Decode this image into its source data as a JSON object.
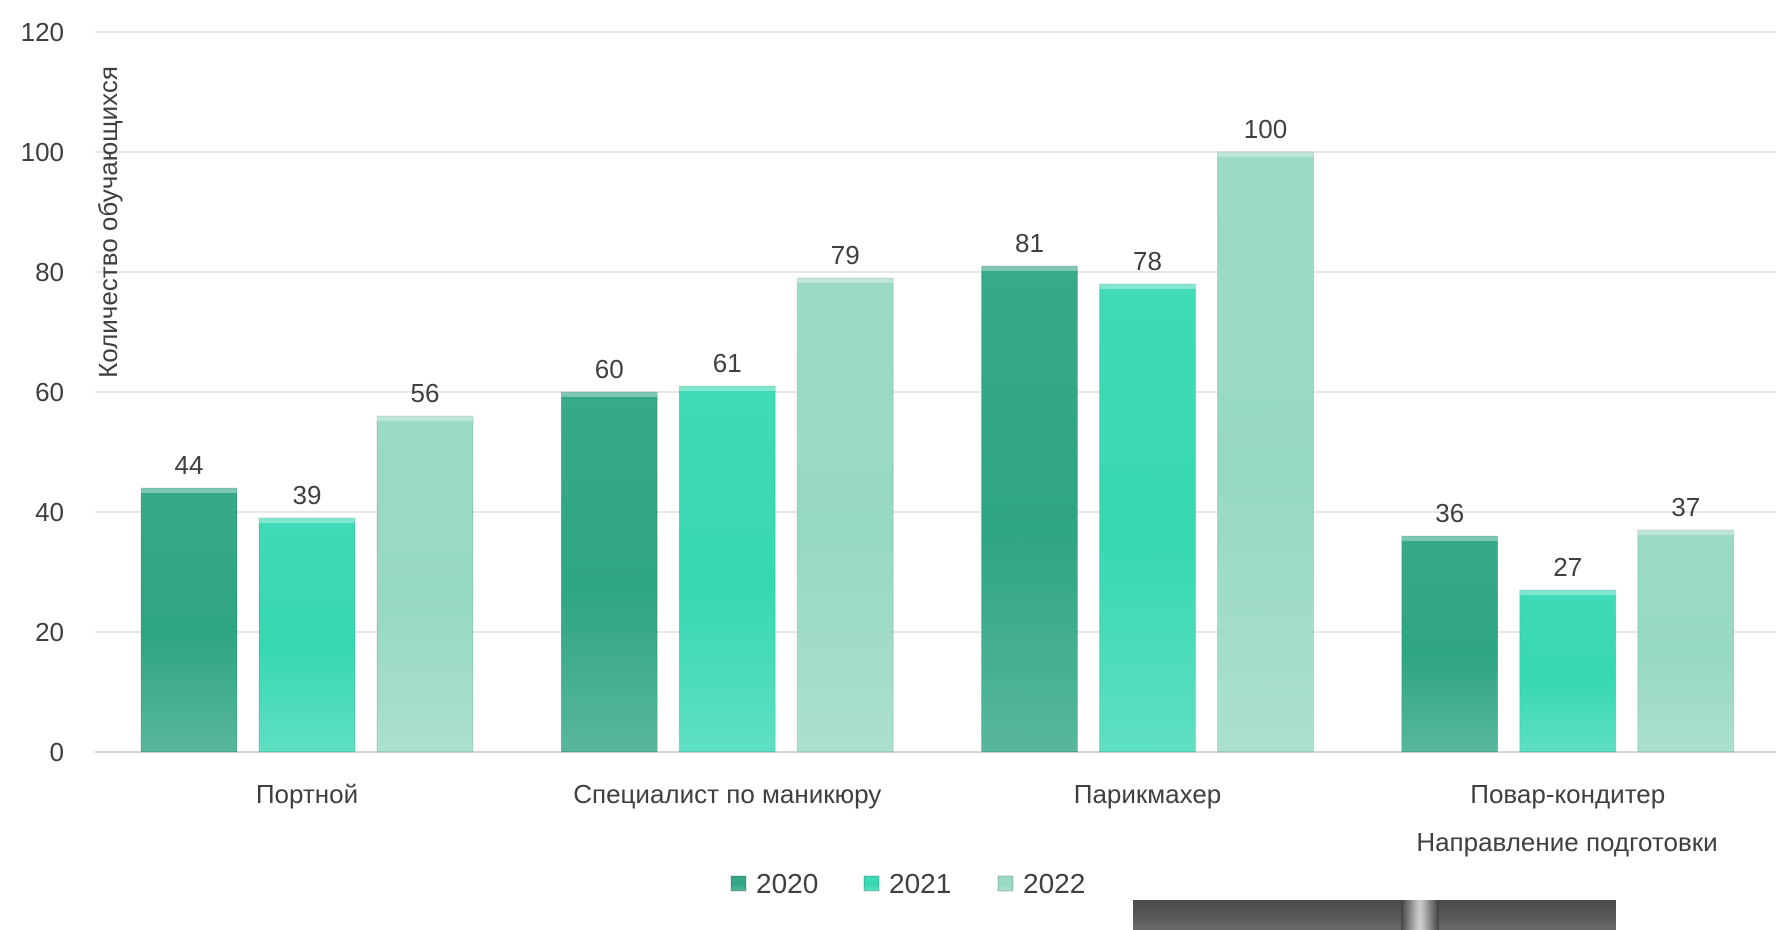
{
  "chart_data": {
    "type": "bar",
    "title": "",
    "xlabel": "Направление подготовки",
    "ylabel": "Количество обучающихся",
    "ylim": [
      0,
      120
    ],
    "yticks": [
      0,
      20,
      40,
      60,
      80,
      100,
      120
    ],
    "grid": true,
    "legend_position": "bottom",
    "categories": [
      "Портной",
      "Специалист по маникюру",
      "Парикмахер",
      "Повар-кондитер"
    ],
    "series": [
      {
        "name": "2020",
        "values": [
          44,
          60,
          81,
          36
        ],
        "color": "#2ea583"
      },
      {
        "name": "2021",
        "values": [
          39,
          61,
          78,
          27
        ],
        "color": "#36d8b2"
      },
      {
        "name": "2022",
        "values": [
          56,
          79,
          100,
          37
        ],
        "color": "#96d9c2"
      }
    ]
  }
}
